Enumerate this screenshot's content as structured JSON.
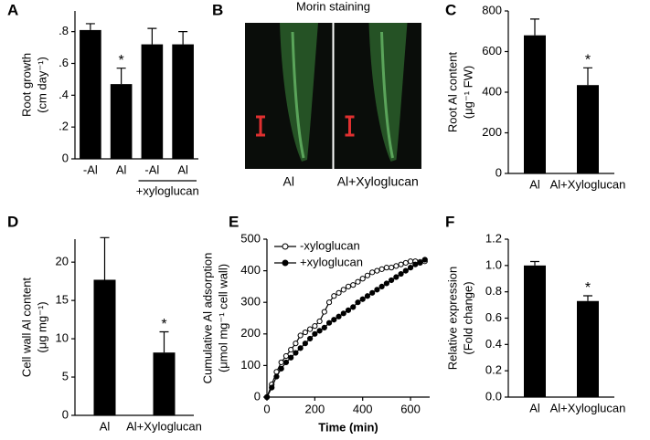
{
  "chart_data": [
    {
      "type": "bar",
      "panel": "A",
      "categories": [
        "-Al",
        "Al",
        "-Al",
        "Al"
      ],
      "values": [
        0.81,
        0.47,
        0.72,
        0.72
      ],
      "errors": [
        0.04,
        0.1,
        0.1,
        0.08
      ],
      "marks": [
        null,
        "*",
        null,
        null
      ],
      "group_label": "+xyloglucan",
      "color": "#000000",
      "ylim": [
        0,
        0.93
      ],
      "yticks": [
        {
          "value": 0,
          "label": "0"
        },
        {
          "value": 0.2,
          "label": ".2"
        },
        {
          "value": 0.4,
          "label": ".4"
        },
        {
          "value": 0.6,
          "label": ".6"
        },
        {
          "value": 0.8,
          "label": ".8"
        }
      ],
      "ylabel": [
        "Root growth",
        "(cm day⁻¹)"
      ]
    },
    {
      "type": "image",
      "panel": "B",
      "title": "Morin staining",
      "labels": [
        "Al",
        "Al+Xyloglucan"
      ]
    },
    {
      "type": "bar",
      "panel": "C",
      "categories": [
        "Al",
        "Al+Xyloglucan"
      ],
      "values": [
        680,
        435
      ],
      "errors": [
        80,
        85
      ],
      "marks": [
        null,
        "*"
      ],
      "color": "#000000",
      "ylim": [
        0,
        800
      ],
      "yticks": [
        0,
        200,
        400,
        600,
        800
      ],
      "ylabel": [
        "Root Al content",
        "(μg⁻¹ FW)"
      ]
    },
    {
      "type": "bar",
      "panel": "D",
      "categories": [
        "Al",
        "Al+Xyloglucan"
      ],
      "values": [
        17.7,
        8.2
      ],
      "errors": [
        5.5,
        2.7
      ],
      "marks": [
        null,
        "*"
      ],
      "color": "#000000",
      "ylim": [
        0,
        23
      ],
      "yticks": [
        0,
        5,
        10,
        15,
        20
      ],
      "ylabel": [
        "Cell wall Al content",
        "(μg mg⁻¹)"
      ]
    },
    {
      "type": "line",
      "panel": "E",
      "x": [
        0,
        20,
        40,
        60,
        80,
        100,
        120,
        140,
        160,
        180,
        200,
        220,
        240,
        260,
        280,
        300,
        320,
        340,
        360,
        380,
        400,
        420,
        440,
        460,
        480,
        500,
        520,
        540,
        560,
        580,
        600,
        620,
        640,
        660
      ],
      "series": [
        {
          "name": "-xyloglucan",
          "color": "#000000",
          "marker": "open",
          "values": [
            0,
            40,
            80,
            110,
            130,
            150,
            170,
            195,
            205,
            215,
            225,
            240,
            270,
            300,
            320,
            330,
            340,
            350,
            355,
            365,
            375,
            385,
            395,
            400,
            405,
            410,
            410,
            415,
            420,
            425,
            430,
            430,
            428,
            430
          ]
        },
        {
          "name": "+xyloglucan",
          "color": "#000000",
          "marker": "filled",
          "values": [
            0,
            30,
            65,
            90,
            110,
            125,
            140,
            155,
            170,
            185,
            200,
            210,
            220,
            235,
            245,
            255,
            265,
            275,
            285,
            300,
            310,
            320,
            330,
            340,
            350,
            360,
            370,
            380,
            390,
            400,
            410,
            420,
            425,
            435
          ]
        }
      ],
      "xlim": [
        0,
        680
      ],
      "xticks": [
        0,
        200,
        400,
        600
      ],
      "ylim": [
        0,
        500
      ],
      "yticks": [
        0,
        100,
        200,
        300,
        400,
        500
      ],
      "xlabel": "Time (min)",
      "ylabel": [
        "Cumulative Al adsorption",
        "(μmol mg⁻¹ cell wall)"
      ],
      "legend": "top-left"
    },
    {
      "type": "bar",
      "panel": "F",
      "categories": [
        "Al",
        "Al+Xyloglucan"
      ],
      "values": [
        1.0,
        0.73
      ],
      "errors": [
        0.03,
        0.04
      ],
      "marks": [
        null,
        "*"
      ],
      "color": "#000000",
      "ylim": [
        0,
        1.2
      ],
      "yticks": [
        {
          "value": 0,
          "label": "0.0"
        },
        0.2,
        0.4,
        0.6,
        0.8,
        {
          "value": 1,
          "label": "1.0"
        },
        1.2
      ],
      "ylabel": [
        "Relative expression",
        "(Fold change)"
      ]
    }
  ]
}
